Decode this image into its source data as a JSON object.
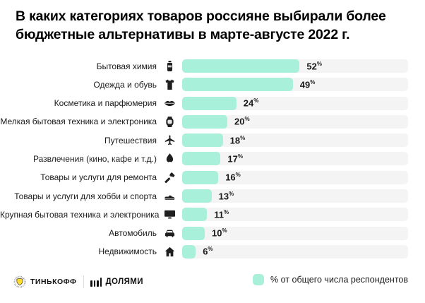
{
  "title": "В каких категориях товаров россияне выбирали более бюджетные альтернативы в марте-августе 2022 г.",
  "chart_data": {
    "type": "bar",
    "orientation": "horizontal",
    "title": "В каких категориях товаров россияне выбирали более бюджетные альтернативы в марте-августе 2022 г.",
    "unit": "%",
    "xlim": [
      0,
      100
    ],
    "grid": false,
    "legend_position": "bottom-right",
    "categories": [
      "Бытовая химия",
      "Одежда и обувь",
      "Косметика и парфюмерия",
      "Мелкая бытовая техника и электроника",
      "Путешествия",
      "Развлечения (кино, кафе и т.д.)",
      "Товары и услуги для ремонта",
      "Товары и услуги для хобби и спорта",
      "Крупная бытовая техника и электроника",
      "Автомобиль",
      "Недвижимость"
    ],
    "values": [
      52,
      49,
      24,
      20,
      18,
      17,
      16,
      13,
      11,
      10,
      6
    ],
    "icons": [
      "cleaning-bottle",
      "tshirt",
      "lips",
      "smartwatch",
      "airplane",
      "flame",
      "hammer",
      "sneaker",
      "monitor",
      "car",
      "house"
    ],
    "bar_color": "#A9F0DA",
    "track_color": "#F4F4F5"
  },
  "legend": {
    "label": "% от общего числа респондентов",
    "swatch_color": "#A9F0DA"
  },
  "footer": {
    "tinkoff_wordmark": "ТИНЬКОФФ",
    "dolyami_wordmark": "ДОЛЯМИ"
  }
}
